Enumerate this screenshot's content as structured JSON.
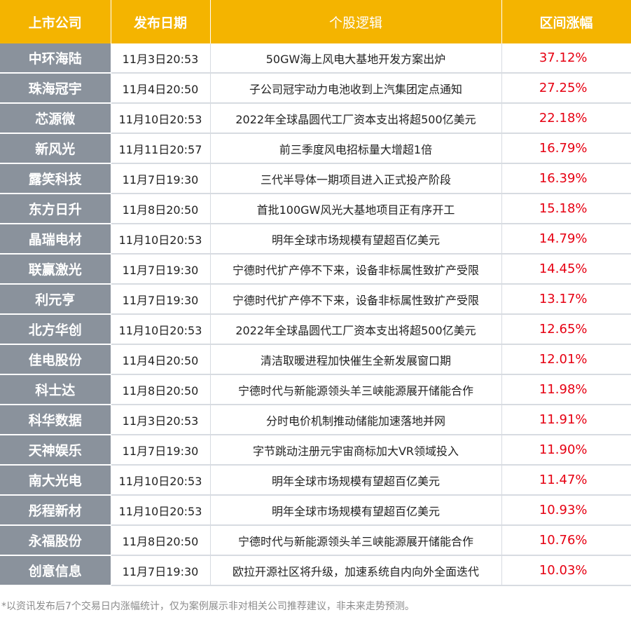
{
  "headers": {
    "company": "上市公司",
    "date": "发布日期",
    "logic": "个股逻辑",
    "change": "区间涨幅"
  },
  "rows": [
    {
      "company": "中环海陆",
      "date": "11月3日20:53",
      "logic": "50GW海上风电大基地开发方案出炉",
      "change": "37.12%"
    },
    {
      "company": "珠海冠宇",
      "date": "11月4日20:50",
      "logic": "子公司冠宇动力电池收到上汽集团定点通知",
      "change": "27.25%"
    },
    {
      "company": "芯源微",
      "date": "11月10日20:53",
      "logic": "2022年全球晶圆代工厂资本支出将超500亿美元",
      "change": "22.18%"
    },
    {
      "company": "新风光",
      "date": "11月11日20:57",
      "logic": "前三季度风电招标量大增超1倍",
      "change": "16.79%"
    },
    {
      "company": "露笑科技",
      "date": "11月7日19:30",
      "logic": "三代半导体一期项目进入正式投产阶段",
      "change": "16.39%"
    },
    {
      "company": "东方日升",
      "date": "11月8日20:50",
      "logic": "首批100GW风光大基地项目正有序开工",
      "change": "15.18%"
    },
    {
      "company": "晶瑞电材",
      "date": "11月10日20:53",
      "logic": "明年全球市场规模有望超百亿美元",
      "change": "14.79%"
    },
    {
      "company": "联赢激光",
      "date": "11月7日19:30",
      "logic": "宁德时代扩产停不下来，设备非标属性致扩产受限",
      "change": "14.45%"
    },
    {
      "company": "利元亨",
      "date": "11月7日19:30",
      "logic": "宁德时代扩产停不下来，设备非标属性致扩产受限",
      "change": "13.17%"
    },
    {
      "company": "北方华创",
      "date": "11月10日20:53",
      "logic": "2022年全球晶圆代工厂资本支出将超500亿美元",
      "change": "12.65%"
    },
    {
      "company": "佳电股份",
      "date": "11月4日20:50",
      "logic": "清洁取暖进程加快催生全新发展窗口期",
      "change": "12.01%"
    },
    {
      "company": "科士达",
      "date": "11月8日20:50",
      "logic": "宁德时代与新能源领头羊三峡能源展开储能合作",
      "change": "11.98%"
    },
    {
      "company": "科华数据",
      "date": "11月3日20:53",
      "logic": "分时电价机制推动储能加速落地并网",
      "change": "11.91%"
    },
    {
      "company": "天神娱乐",
      "date": "11月7日19:30",
      "logic": "字节跳动注册元宇宙商标加大VR领域投入",
      "change": "11.90%"
    },
    {
      "company": "南大光电",
      "date": "11月10日20:53",
      "logic": "明年全球市场规模有望超百亿美元",
      "change": "11.47%"
    },
    {
      "company": "彤程新材",
      "date": "11月10日20:53",
      "logic": "明年全球市场规模有望超百亿美元",
      "change": "10.93%"
    },
    {
      "company": "永福股份",
      "date": "11月8日20:50",
      "logic": "宁德时代与新能源领头羊三峡能源展开储能合作",
      "change": "10.76%"
    },
    {
      "company": "创意信息",
      "date": "11月7日19:30",
      "logic": "欧拉开源社区将升级，加速系统自内向外全面迭代",
      "change": "10.03%"
    }
  ],
  "footnote": "*以资讯发布后7个交易日内涨幅统计，仅为案例展示非对相关公司推荐建议，非未来走势预测。",
  "colors": {
    "header_bg": "#f4b400",
    "company_bg": "#8a929c",
    "change_text": "#e60012"
  }
}
